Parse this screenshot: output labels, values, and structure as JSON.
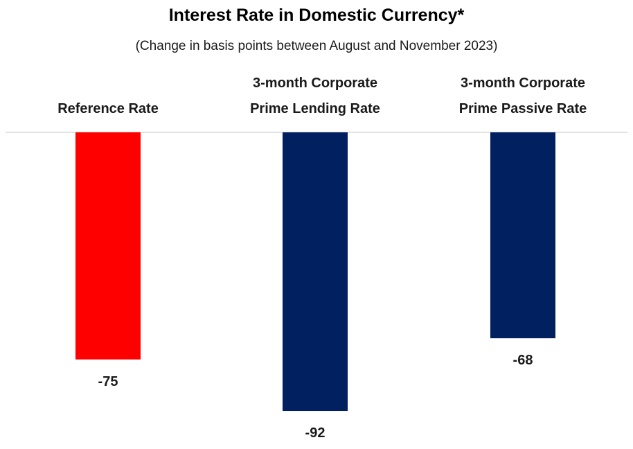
{
  "chart_data": {
    "type": "bar",
    "title": "Interest Rate in Domestic Currency*",
    "subtitle": "(Change in basis points between August and November 2023)",
    "xlabel": "",
    "ylabel": "",
    "categories": [
      [
        "Reference Rate"
      ],
      [
        "3-month Corporate",
        "Prime Lending Rate"
      ],
      [
        "3-month Corporate",
        "Prime Passive Rate"
      ]
    ],
    "values": [
      -75,
      -92,
      -68
    ],
    "value_labels": [
      "-75",
      "-92",
      "-68"
    ],
    "colors": [
      "#ff0000",
      "#002060",
      "#002060"
    ],
    "ylim": [
      -100,
      0
    ],
    "grid": false,
    "legend": "none",
    "axis_line_color": "#d9d9d9"
  }
}
